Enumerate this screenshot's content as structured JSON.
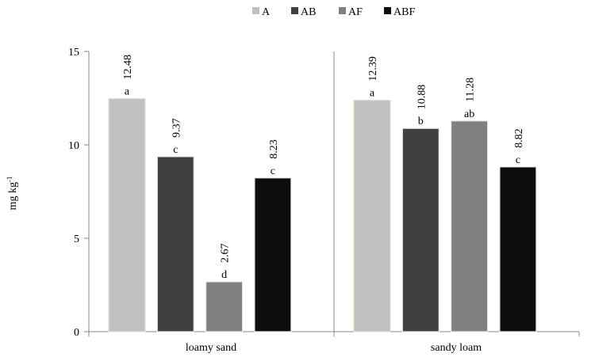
{
  "chart_data": {
    "type": "bar",
    "title": "",
    "xlabel": "",
    "ylabel": "mg kg",
    "ylabel_superscript": "-1",
    "ylim": [
      0,
      15
    ],
    "yticks": [
      "0",
      "5",
      "10",
      "15"
    ],
    "yticks_values": [
      0,
      5,
      10,
      15
    ],
    "grid": false,
    "legend_position": "top-center",
    "categories": [
      "loamy sand",
      "sandy loam"
    ],
    "series": [
      {
        "name": "A",
        "color": "#c0c0c0",
        "values": [
          12.48,
          12.39
        ],
        "value_labels": [
          "12.48",
          "12.39"
        ],
        "letters": [
          "a",
          "a"
        ]
      },
      {
        "name": "AB",
        "color": "#404040",
        "values": [
          9.37,
          10.88
        ],
        "value_labels": [
          "9.37",
          "10.88"
        ],
        "letters": [
          "c",
          "b"
        ]
      },
      {
        "name": "AF",
        "color": "#808080",
        "values": [
          2.67,
          11.28
        ],
        "value_labels": [
          "2.67",
          "11.28"
        ],
        "letters": [
          "d",
          "ab"
        ]
      },
      {
        "name": "ABF",
        "color": "#0d0d0d",
        "values": [
          8.23,
          8.82
        ],
        "value_labels": [
          "8.23",
          "8.82"
        ],
        "letters": [
          "c",
          "c"
        ]
      }
    ]
  }
}
